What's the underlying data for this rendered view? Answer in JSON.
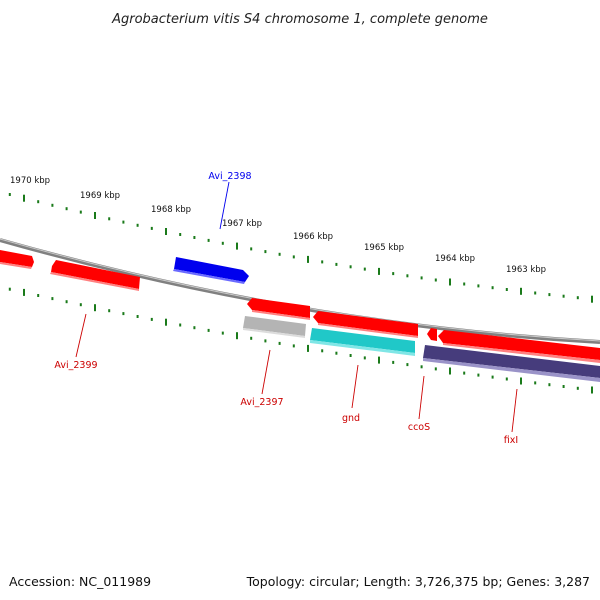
{
  "title": "Agrobacterium vitis S4 chromosome 1, complete genome",
  "footer": {
    "accession": "Accession: NC_011989",
    "summary": "Topology: circular; Length: 3,726,375 bp; Genes: 3,287"
  },
  "colors": {
    "forward": "#ff0000",
    "reverse_dark": "#463c7c",
    "highlight": "#0000ee",
    "rna": "#20c8c8",
    "pseudo": "#b4b4b4",
    "backbone": "#808080",
    "ticks": "#1a7a1a"
  },
  "kbp_labels": [
    "1970 kbp",
    "1969 kbp",
    "1968 kbp",
    "1967 kbp",
    "1966 kbp",
    "1965 kbp",
    "1964 kbp",
    "1963 kbp"
  ],
  "gene_labels": [
    {
      "text": "Avi_2398",
      "color": "#0000ee"
    },
    {
      "text": "Avi_2399",
      "color": "#cc0000"
    },
    {
      "text": "Avi_2397",
      "color": "#cc0000"
    },
    {
      "text": "gnd",
      "color": "#cc0000"
    },
    {
      "text": "ccoS",
      "color": "#cc0000"
    },
    {
      "text": "fixI",
      "color": "#cc0000"
    }
  ]
}
